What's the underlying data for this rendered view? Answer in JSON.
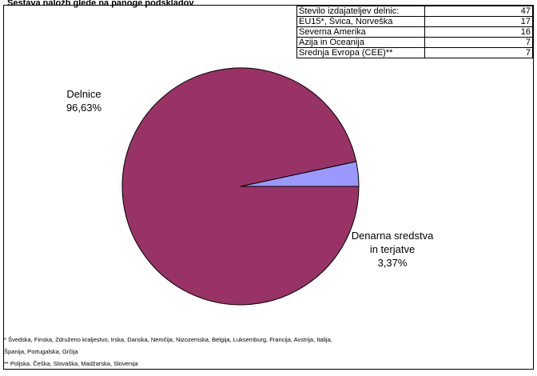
{
  "caption": "Sestava naložb glede na panoge podskladov",
  "info_table": [
    {
      "label": "Število izdajateljev delnic:",
      "value": "47"
    },
    {
      "label": "EU15*, Švica, Norveška",
      "value": "17"
    },
    {
      "label": "Severna Amerika",
      "value": "16"
    },
    {
      "label": "Azija in Oceanija",
      "value": "7"
    },
    {
      "label": "Srednja Evropa (CEE)**",
      "value": "7"
    }
  ],
  "chart_data": {
    "type": "pie",
    "slices": [
      {
        "label": "Delnice",
        "value": 96.63,
        "value_label": "96,63%",
        "color": "#993366"
      },
      {
        "label": "Denarna sredstva in terjatve",
        "value": 3.37,
        "value_label": "3,37%",
        "color": "#9999ff"
      }
    ],
    "labels": {
      "delnice_line1": "Delnice",
      "delnice_line2": "96,63%",
      "denar_line1": "Denarna sredstva",
      "denar_line2": "in terjatve",
      "denar_line3": "3,37%"
    }
  },
  "footnotes": {
    "line1": "* Švedska, Finska, Združeno kraljestvo, Irska, Danska, Nemčija, Nizozemska, Belgija, Luksemburg, Francija, Avstrija, Italija,",
    "line2": "Španija, Portugalska, Grčija",
    "line3": "** Poljska, Češka, Slovaška, Madžarska, Slovenija"
  }
}
